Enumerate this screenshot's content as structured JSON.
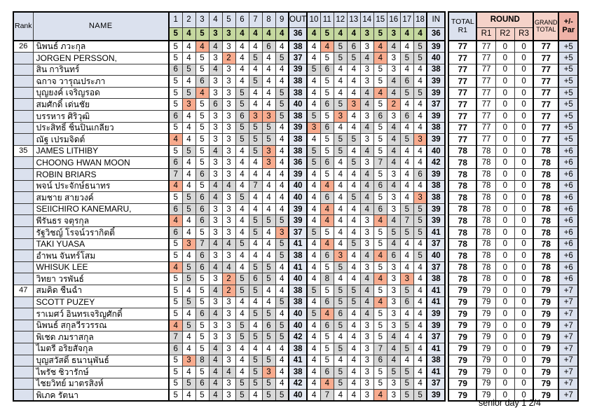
{
  "header": {
    "rank": "Rank",
    "name": "NAME",
    "front_holes": [
      "1",
      "2",
      "3",
      "4",
      "5",
      "6",
      "7",
      "8",
      "9"
    ],
    "out": "OUT",
    "back_holes": [
      "10",
      "11",
      "12",
      "13",
      "14",
      "15",
      "16",
      "17",
      "18"
    ],
    "in": "IN",
    "total_top": "TOTAL",
    "total_bottom": "R1",
    "round": "ROUND",
    "round_cols": [
      "R1",
      "R2",
      "R3"
    ],
    "grand_top": "GRAND",
    "grand_bottom": "TOTAL",
    "par_top": "+/-",
    "par_bottom": "Par"
  },
  "par": {
    "front": [
      5,
      4,
      5,
      3,
      3,
      4,
      4,
      4,
      4
    ],
    "out_total": 36,
    "back": [
      4,
      5,
      4,
      4,
      3,
      5,
      3,
      4,
      4
    ],
    "in_total": 36
  },
  "colors": {
    "header_blue": "#dbe1ee",
    "par_green": "#c5d89f",
    "round_pink": "#f5d2c9",
    "par_header_pink": "#efb2a7",
    "over_par_gray": "#d9d9d9",
    "under_par_salmon": "#f8ab8e",
    "out_in_blue": "#e4e9f3"
  },
  "players": [
    {
      "rank": "26",
      "name": "นิพนธ์ ภวะกุล",
      "front": [
        5,
        4,
        4,
        4,
        3,
        4,
        4,
        6,
        4
      ],
      "out": 38,
      "back": [
        4,
        4,
        5,
        6,
        3,
        4,
        4,
        4,
        5
      ],
      "in": 39,
      "total": 77,
      "r1": 77,
      "r2": 0,
      "r3": 0,
      "grand": 77,
      "plus_minus": "+5"
    },
    {
      "rank": "",
      "name": "JORGEN PERSSON,",
      "front": [
        5,
        4,
        5,
        3,
        2,
        4,
        5,
        4,
        5
      ],
      "out": 37,
      "back": [
        4,
        5,
        5,
        5,
        4,
        4,
        3,
        5,
        5
      ],
      "in": 40,
      "total": 77,
      "r1": 77,
      "r2": 0,
      "r3": 0,
      "grand": 77,
      "plus_minus": "+5"
    },
    {
      "rank": "",
      "name": "สิน การินทร์",
      "front": [
        6,
        5,
        5,
        4,
        3,
        4,
        4,
        4,
        4
      ],
      "out": 39,
      "back": [
        5,
        6,
        4,
        4,
        3,
        5,
        3,
        4,
        4
      ],
      "in": 38,
      "total": 77,
      "r1": 77,
      "r2": 0,
      "r3": 0,
      "grand": 77,
      "plus_minus": "+5"
    },
    {
      "rank": "",
      "name": "ฉกาจ วารุณประภา",
      "front": [
        5,
        4,
        6,
        3,
        3,
        4,
        5,
        4,
        4
      ],
      "out": 38,
      "back": [
        4,
        5,
        4,
        4,
        3,
        5,
        4,
        6,
        4
      ],
      "in": 39,
      "total": 77,
      "r1": 77,
      "r2": 0,
      "r3": 0,
      "grand": 77,
      "plus_minus": "+5"
    },
    {
      "rank": "",
      "name": "บุญยงค์ เจริญรอด",
      "front": [
        5,
        5,
        4,
        3,
        3,
        5,
        4,
        4,
        5
      ],
      "out": 38,
      "back": [
        4,
        5,
        4,
        4,
        4,
        4,
        4,
        5,
        5
      ],
      "in": 39,
      "total": 77,
      "r1": 77,
      "r2": 0,
      "r3": 0,
      "grand": 77,
      "plus_minus": "+5"
    },
    {
      "rank": "",
      "name": "สมศักดิ์ เด่นชัย",
      "front": [
        5,
        3,
        5,
        6,
        3,
        5,
        4,
        4,
        5
      ],
      "out": 40,
      "back": [
        4,
        6,
        5,
        3,
        4,
        5,
        2,
        4,
        4
      ],
      "in": 37,
      "total": 77,
      "r1": 77,
      "r2": 0,
      "r3": 0,
      "grand": 77,
      "plus_minus": "+5"
    },
    {
      "rank": "",
      "name": "บรรหาร ศิริวุฒิ",
      "front": [
        6,
        4,
        5,
        3,
        3,
        6,
        3,
        3,
        5
      ],
      "out": 38,
      "back": [
        5,
        5,
        3,
        4,
        3,
        6,
        3,
        6,
        4
      ],
      "in": 39,
      "total": 77,
      "r1": 77,
      "r2": 0,
      "r3": 0,
      "grand": 77,
      "plus_minus": "+5"
    },
    {
      "rank": "",
      "name": "ประสิทธิ์ ชิ้นปิ่นเกลียว",
      "front": [
        5,
        4,
        5,
        3,
        3,
        5,
        5,
        5,
        4
      ],
      "out": 39,
      "back": [
        3,
        6,
        4,
        4,
        4,
        5,
        4,
        4,
        4
      ],
      "in": 38,
      "total": 77,
      "r1": 77,
      "r2": 0,
      "r3": 0,
      "grand": 77,
      "plus_minus": "+5"
    },
    {
      "rank": "",
      "name": "ณัฐ เปรมจิดต์",
      "front": [
        4,
        4,
        5,
        3,
        3,
        5,
        5,
        5,
        4
      ],
      "out": 38,
      "back": [
        4,
        5,
        5,
        5,
        3,
        5,
        4,
        5,
        3
      ],
      "in": 39,
      "total": 77,
      "r1": 77,
      "r2": 0,
      "r3": 0,
      "grand": 77,
      "plus_minus": "+5"
    },
    {
      "rank": "35",
      "name": "JAMES LITHIBY",
      "front": [
        5,
        5,
        5,
        4,
        3,
        4,
        5,
        3,
        4
      ],
      "out": 38,
      "back": [
        5,
        5,
        5,
        4,
        4,
        5,
        4,
        4,
        4
      ],
      "in": 40,
      "total": 78,
      "r1": 78,
      "r2": 0,
      "r3": 0,
      "grand": 78,
      "plus_minus": "+6"
    },
    {
      "rank": "",
      "name": "CHOONG HWAN MOON",
      "front": [
        6,
        4,
        5,
        3,
        3,
        4,
        4,
        3,
        4
      ],
      "out": 36,
      "back": [
        5,
        6,
        4,
        5,
        3,
        7,
        4,
        4,
        4
      ],
      "in": 42,
      "total": 78,
      "r1": 78,
      "r2": 0,
      "r3": 0,
      "grand": 78,
      "plus_minus": "+6"
    },
    {
      "rank": "",
      "name": "ROBIN BRIARS",
      "front": [
        7,
        4,
        6,
        3,
        3,
        4,
        4,
        4,
        4
      ],
      "out": 39,
      "back": [
        4,
        5,
        4,
        4,
        4,
        5,
        3,
        4,
        6
      ],
      "in": 39,
      "total": 78,
      "r1": 78,
      "r2": 0,
      "r3": 0,
      "grand": 78,
      "plus_minus": "+6"
    },
    {
      "rank": "",
      "name": "พจน์ ประจักษ์ธนาทร",
      "front": [
        4,
        4,
        5,
        4,
        4,
        4,
        7,
        4,
        4
      ],
      "out": 40,
      "back": [
        4,
        4,
        4,
        4,
        4,
        6,
        4,
        4,
        4
      ],
      "in": 38,
      "total": 78,
      "r1": 78,
      "r2": 0,
      "r3": 0,
      "grand": 78,
      "plus_minus": "+6"
    },
    {
      "rank": "",
      "name": "สมชาย สายวงค์",
      "front": [
        5,
        5,
        6,
        4,
        3,
        5,
        4,
        4,
        4
      ],
      "out": 40,
      "back": [
        4,
        6,
        4,
        5,
        4,
        5,
        3,
        4,
        3
      ],
      "in": 38,
      "total": 78,
      "r1": 78,
      "r2": 0,
      "r3": 0,
      "grand": 78,
      "plus_minus": "+6"
    },
    {
      "rank": "",
      "name": "SEIICHIRO KANEMARU,",
      "front": [
        6,
        5,
        6,
        3,
        3,
        4,
        4,
        4,
        4
      ],
      "out": 39,
      "back": [
        4,
        4,
        4,
        4,
        4,
        6,
        3,
        5,
        5
      ],
      "in": 39,
      "total": 78,
      "r1": 78,
      "r2": 0,
      "r3": 0,
      "grand": 78,
      "plus_minus": "+6"
    },
    {
      "rank": "",
      "name": "พีรันธร จตุรกุล",
      "front": [
        4,
        4,
        6,
        3,
        3,
        4,
        5,
        5,
        5
      ],
      "out": 39,
      "back": [
        4,
        4,
        4,
        4,
        3,
        4,
        4,
        7,
        5
      ],
      "in": 39,
      "total": 78,
      "r1": 78,
      "r2": 0,
      "r3": 0,
      "grand": 78,
      "plus_minus": "+6"
    },
    {
      "rank": "",
      "name": "รัฐวิชญ์ โรจน์วรากิตติ์",
      "front": [
        6,
        4,
        5,
        3,
        3,
        4,
        5,
        4,
        3
      ],
      "out": 37,
      "back": [
        5,
        5,
        4,
        4,
        3,
        5,
        5,
        5,
        5
      ],
      "in": 41,
      "total": 78,
      "r1": 78,
      "r2": 0,
      "r3": 0,
      "grand": 78,
      "plus_minus": "+6"
    },
    {
      "rank": "",
      "name": "TAKI YUASA",
      "front": [
        5,
        3,
        7,
        4,
        4,
        5,
        4,
        4,
        5
      ],
      "out": 41,
      "back": [
        4,
        4,
        4,
        5,
        3,
        5,
        4,
        4,
        4
      ],
      "in": 37,
      "total": 78,
      "r1": 78,
      "r2": 0,
      "r3": 0,
      "grand": 78,
      "plus_minus": "+6"
    },
    {
      "rank": "",
      "name": "อำพน จันทร์โสม",
      "front": [
        5,
        4,
        6,
        3,
        3,
        4,
        4,
        4,
        5
      ],
      "out": 38,
      "back": [
        4,
        6,
        3,
        4,
        4,
        4,
        6,
        4,
        5
      ],
      "in": 40,
      "total": 78,
      "r1": 78,
      "r2": 0,
      "r3": 0,
      "grand": 78,
      "plus_minus": "+6"
    },
    {
      "rank": "",
      "name": "WHISUK LEE",
      "front": [
        4,
        5,
        6,
        4,
        4,
        4,
        5,
        5,
        4
      ],
      "out": 41,
      "back": [
        4,
        5,
        5,
        4,
        3,
        5,
        3,
        4,
        4
      ],
      "in": 37,
      "total": 78,
      "r1": 78,
      "r2": 0,
      "r3": 0,
      "grand": 78,
      "plus_minus": "+6"
    },
    {
      "rank": "",
      "name": "วิทยา วรพันธ์",
      "front": [
        5,
        5,
        5,
        3,
        2,
        5,
        6,
        5,
        4
      ],
      "out": 40,
      "back": [
        4,
        8,
        4,
        4,
        4,
        4,
        3,
        3,
        4
      ],
      "in": 38,
      "total": 78,
      "r1": 78,
      "r2": 0,
      "r3": 0,
      "grand": 78,
      "plus_minus": "+6"
    },
    {
      "rank": "47",
      "name": "สมคิด ชื่นฉ่ำ",
      "front": [
        5,
        4,
        5,
        4,
        2,
        5,
        5,
        4,
        4
      ],
      "out": 38,
      "back": [
        5,
        5,
        5,
        5,
        4,
        5,
        3,
        5,
        4
      ],
      "in": 41,
      "total": 79,
      "r1": 79,
      "r2": 0,
      "r3": 0,
      "grand": 79,
      "plus_minus": "+7"
    },
    {
      "rank": "",
      "name": "SCOTT PUZEY",
      "front": [
        5,
        5,
        5,
        3,
        3,
        4,
        4,
        4,
        5
      ],
      "out": 38,
      "back": [
        4,
        6,
        5,
        5,
        4,
        4,
        3,
        6,
        4
      ],
      "in": 41,
      "total": 79,
      "r1": 79,
      "r2": 0,
      "r3": 0,
      "grand": 79,
      "plus_minus": "+7"
    },
    {
      "rank": "",
      "name": "ราเมศว์ อินทรเจริญศักดิ์",
      "front": [
        5,
        4,
        6,
        4,
        3,
        4,
        5,
        5,
        4
      ],
      "out": 40,
      "back": [
        5,
        4,
        6,
        4,
        4,
        5,
        3,
        4,
        4
      ],
      "in": 39,
      "total": 79,
      "r1": 79,
      "r2": 0,
      "r3": 0,
      "grand": 79,
      "plus_minus": "+7"
    },
    {
      "rank": "",
      "name": "นิพนธ์ สกุลวีรวรรณ",
      "front": [
        4,
        5,
        5,
        3,
        3,
        5,
        4,
        6,
        5
      ],
      "out": 40,
      "back": [
        4,
        6,
        5,
        4,
        3,
        5,
        3,
        5,
        4
      ],
      "in": 39,
      "total": 79,
      "r1": 79,
      "r2": 0,
      "r3": 0,
      "grand": 79,
      "plus_minus": "+7"
    },
    {
      "rank": "",
      "name": "พิเชด ภมราสกุล",
      "front": [
        7,
        4,
        5,
        3,
        3,
        5,
        5,
        5,
        5
      ],
      "out": 42,
      "back": [
        4,
        5,
        4,
        4,
        3,
        5,
        4,
        4,
        4
      ],
      "in": 37,
      "total": 79,
      "r1": 79,
      "r2": 0,
      "r3": 0,
      "grand": 79,
      "plus_minus": "+7"
    },
    {
      "rank": "",
      "name": "ไมตรี อริยสัจกุล",
      "front": [
        6,
        4,
        5,
        4,
        3,
        4,
        4,
        4,
        4
      ],
      "out": 38,
      "back": [
        4,
        5,
        5,
        4,
        3,
        7,
        4,
        5,
        4
      ],
      "in": 41,
      "total": 79,
      "r1": 79,
      "r2": 0,
      "r3": 0,
      "grand": 79,
      "plus_minus": "+7"
    },
    {
      "rank": "",
      "name": "บุญสวัสดิ์ ธนานุพันธ์",
      "front": [
        5,
        3,
        8,
        4,
        3,
        4,
        5,
        5,
        4
      ],
      "out": 41,
      "back": [
        4,
        5,
        4,
        4,
        3,
        6,
        4,
        4,
        4
      ],
      "in": 38,
      "total": 79,
      "r1": 79,
      "r2": 0,
      "r3": 0,
      "grand": 79,
      "plus_minus": "+7"
    },
    {
      "rank": "",
      "name": "ไพรัช ชิวารักษ์",
      "front": [
        5,
        4,
        5,
        4,
        4,
        4,
        5,
        3,
        4
      ],
      "out": 38,
      "back": [
        4,
        6,
        5,
        4,
        3,
        5,
        5,
        5,
        4
      ],
      "in": 41,
      "total": 79,
      "r1": 79,
      "r2": 0,
      "r3": 0,
      "grand": 79,
      "plus_minus": "+7"
    },
    {
      "rank": "",
      "name": "ไชยวิทย์ มาตรสิงห์",
      "front": [
        5,
        5,
        6,
        4,
        3,
        5,
        5,
        5,
        4
      ],
      "out": 42,
      "back": [
        4,
        4,
        5,
        4,
        3,
        5,
        3,
        5,
        4
      ],
      "in": 37,
      "total": 79,
      "r1": 79,
      "r2": 0,
      "r3": 0,
      "grand": 79,
      "plus_minus": "+7"
    },
    {
      "rank": "",
      "name": "พิเภค รัตนา",
      "front": [
        5,
        4,
        5,
        4,
        3,
        5,
        4,
        5,
        5
      ],
      "out": 40,
      "back": [
        4,
        7,
        4,
        4,
        3,
        4,
        3,
        5,
        5
      ],
      "in": 39,
      "total": 79,
      "r1": 79,
      "r2": 0,
      "r3": 0,
      "grand": 79,
      "plus_minus": "+7"
    }
  ],
  "footer": "senior day 1  2/4"
}
